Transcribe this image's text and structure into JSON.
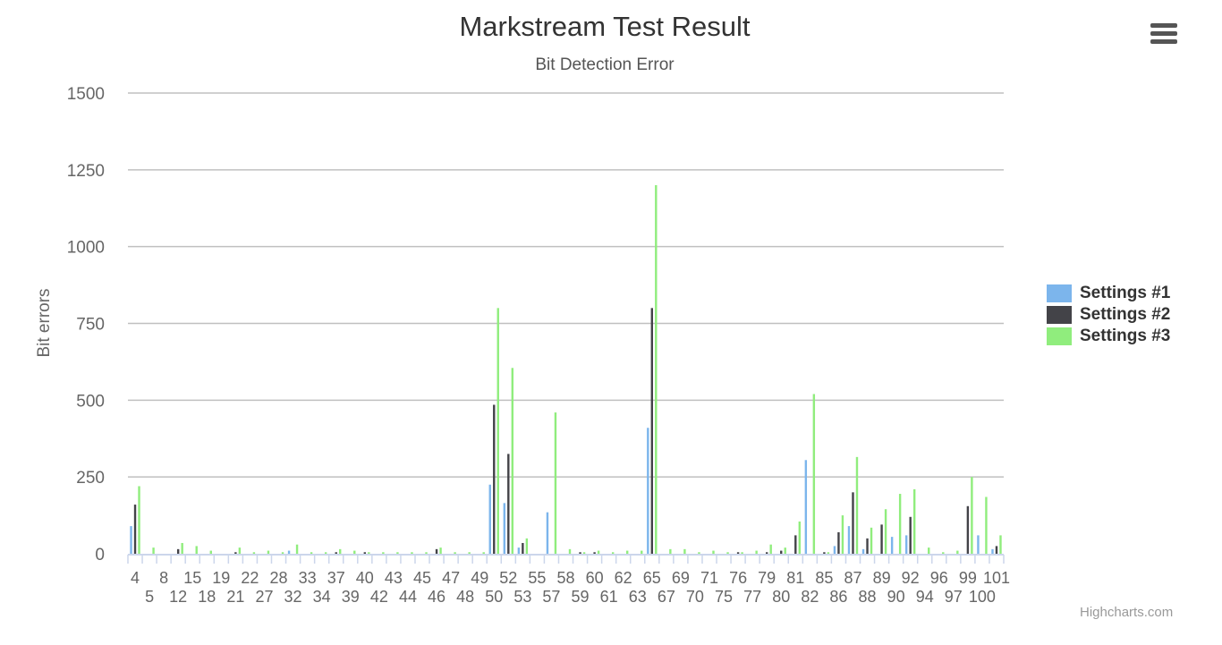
{
  "chart_data": {
    "type": "bar",
    "title": "Markstream Test Result",
    "subtitle": "Bit Detection Error",
    "ylabel": "Bit errors",
    "xlabel": "",
    "ylim": [
      0,
      1500
    ],
    "yticks": [
      0,
      250,
      500,
      750,
      1000,
      1250,
      1500
    ],
    "grid": true,
    "legend_position": "right",
    "categories": [
      "4",
      "5",
      "8",
      "12",
      "15",
      "18",
      "19",
      "21",
      "22",
      "27",
      "28",
      "32",
      "33",
      "34",
      "37",
      "39",
      "40",
      "42",
      "43",
      "44",
      "45",
      "46",
      "47",
      "48",
      "49",
      "50",
      "52",
      "53",
      "55",
      "57",
      "58",
      "59",
      "60",
      "61",
      "62",
      "63",
      "65",
      "67",
      "69",
      "70",
      "71",
      "75",
      "76",
      "77",
      "79",
      "80",
      "81",
      "82",
      "85",
      "86",
      "87",
      "88",
      "89",
      "90",
      "92",
      "94",
      "96",
      "97",
      "99",
      "100",
      "101"
    ],
    "series": [
      {
        "name": "Settings #1",
        "color": "#7cb5ec",
        "values": [
          90,
          0,
          0,
          0,
          0,
          0,
          0,
          0,
          0,
          0,
          0,
          10,
          0,
          0,
          0,
          0,
          0,
          0,
          0,
          0,
          0,
          0,
          0,
          0,
          0,
          225,
          165,
          20,
          0,
          135,
          0,
          0,
          0,
          0,
          0,
          0,
          410,
          0,
          0,
          0,
          0,
          0,
          0,
          0,
          0,
          0,
          0,
          305,
          0,
          25,
          90,
          15,
          0,
          55,
          60,
          0,
          0,
          0,
          0,
          60,
          15
        ]
      },
      {
        "name": "Settings #2",
        "color": "#434348",
        "values": [
          160,
          0,
          0,
          15,
          0,
          0,
          0,
          5,
          0,
          0,
          0,
          0,
          0,
          0,
          5,
          0,
          5,
          0,
          0,
          0,
          0,
          15,
          0,
          0,
          0,
          485,
          325,
          35,
          0,
          0,
          0,
          5,
          5,
          0,
          0,
          0,
          800,
          0,
          0,
          0,
          0,
          0,
          5,
          0,
          5,
          10,
          60,
          0,
          5,
          70,
          200,
          50,
          95,
          0,
          120,
          0,
          0,
          0,
          155,
          0,
          25
        ]
      },
      {
        "name": "Settings #3",
        "color": "#90ed7d",
        "values": [
          220,
          20,
          0,
          35,
          25,
          10,
          0,
          20,
          5,
          10,
          5,
          30,
          5,
          5,
          15,
          10,
          5,
          5,
          5,
          5,
          5,
          20,
          5,
          5,
          5,
          800,
          605,
          50,
          0,
          460,
          15,
          5,
          10,
          5,
          10,
          10,
          1200,
          15,
          15,
          5,
          10,
          5,
          5,
          10,
          30,
          20,
          105,
          520,
          5,
          125,
          315,
          85,
          145,
          195,
          210,
          20,
          5,
          10,
          250,
          185,
          60
        ]
      }
    ]
  },
  "menu": {
    "icon": "hamburger-menu-icon"
  },
  "credits": {
    "text": "Highcharts.com"
  }
}
